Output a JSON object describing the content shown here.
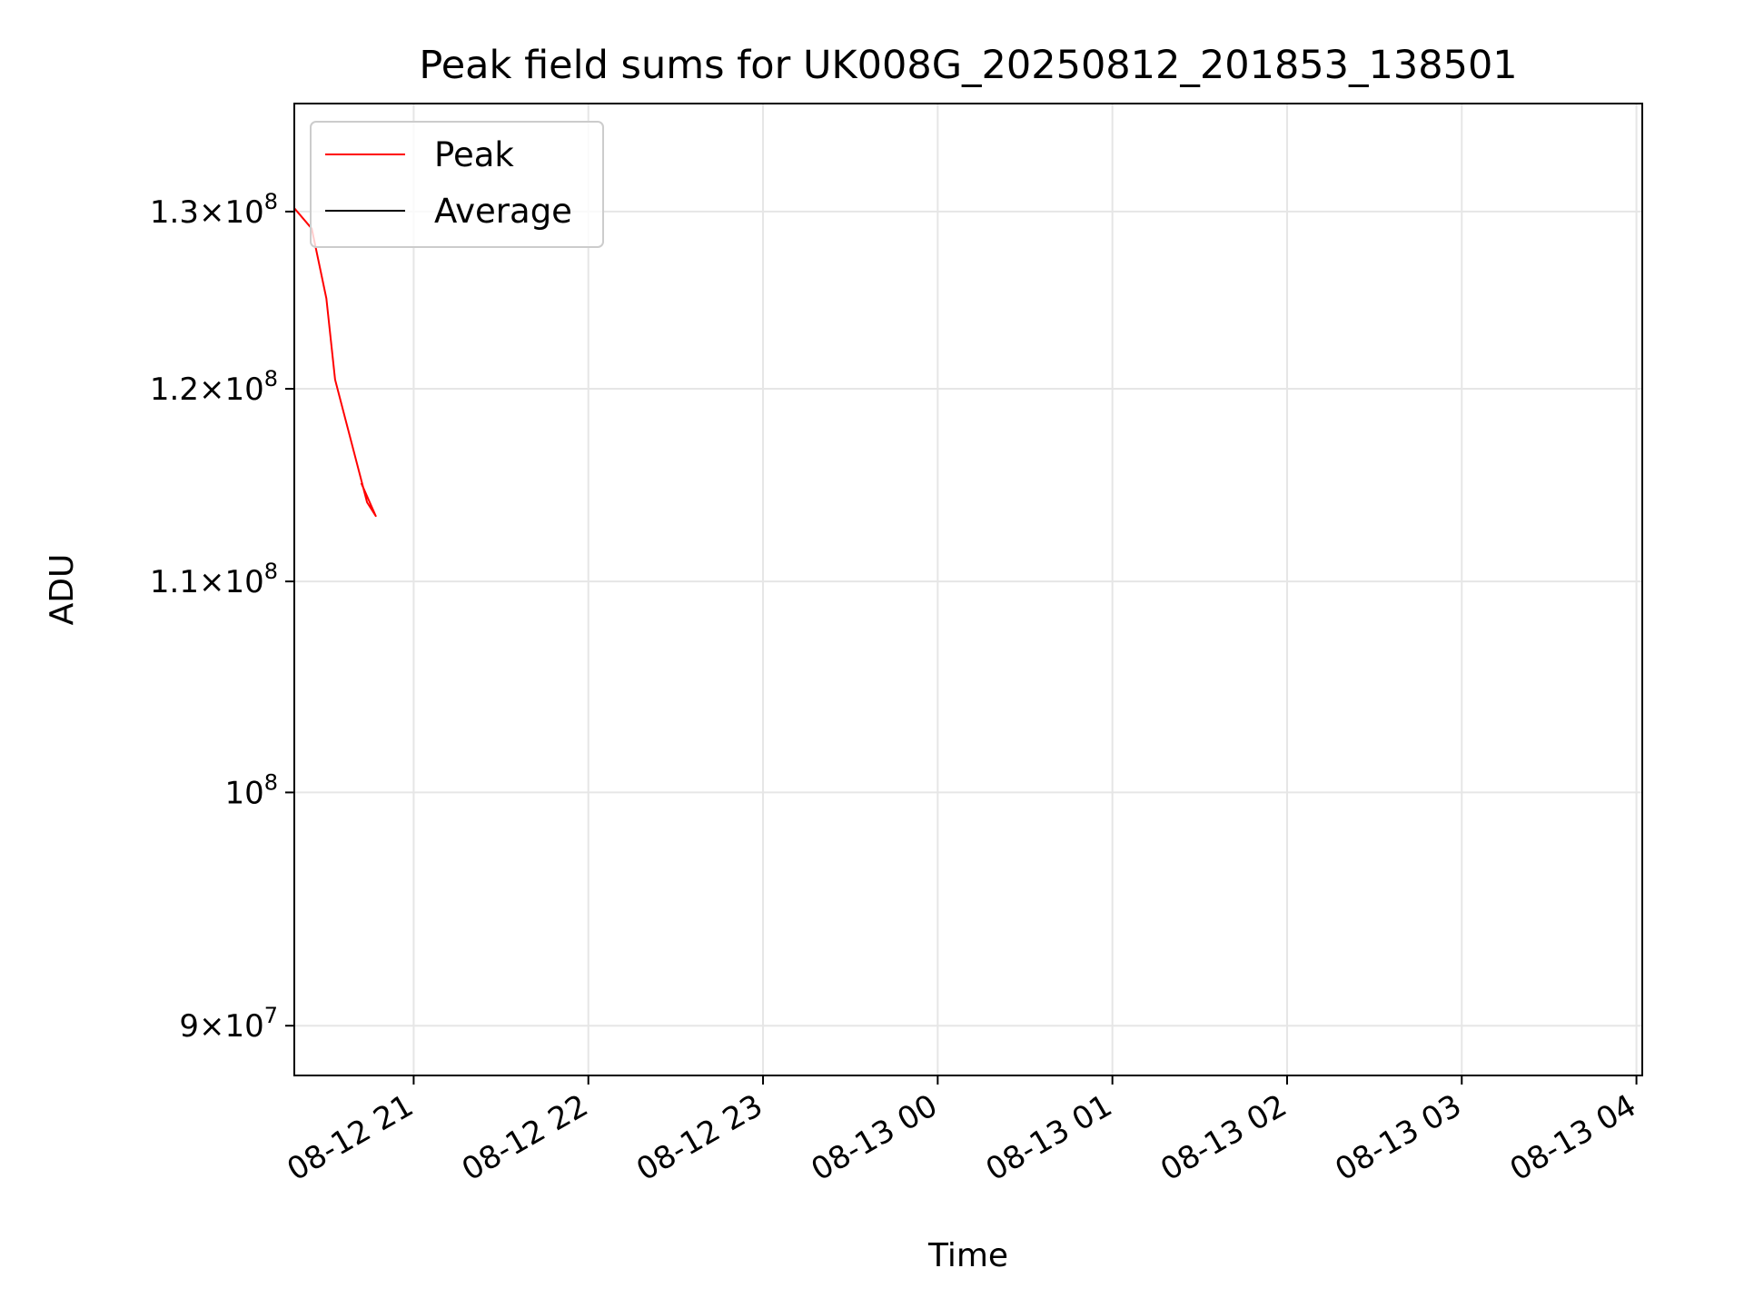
{
  "chart_data": {
    "type": "line",
    "title": "Peak field sums for UK008G_20250812_201853_138501",
    "xlabel": "Time",
    "ylabel": "ADU",
    "y_scale": "log",
    "ylim": [
      88000000,
      136500000
    ],
    "xlim": [
      "2025-08-12 20:19",
      "2025-08-13 04:02"
    ],
    "grid": true,
    "legend": {
      "placement": "top-left",
      "entries": [
        "Peak",
        "Average"
      ]
    },
    "x_ticks": [
      {
        "label": "08-12 21",
        "value": "2025-08-12 21:00"
      },
      {
        "label": "08-12 22",
        "value": "2025-08-12 22:00"
      },
      {
        "label": "08-12 23",
        "value": "2025-08-12 23:00"
      },
      {
        "label": "08-13 00",
        "value": "2025-08-13 00:00"
      },
      {
        "label": "08-13 01",
        "value": "2025-08-13 01:00"
      },
      {
        "label": "08-13 02",
        "value": "2025-08-13 02:00"
      },
      {
        "label": "08-13 03",
        "value": "2025-08-13 03:00"
      },
      {
        "label": "08-13 04",
        "value": "2025-08-13 04:00"
      }
    ],
    "y_ticks": [
      {
        "value": 90000000,
        "mantissa": "9",
        "exponent": "7"
      },
      {
        "value": 100000000,
        "mantissa": "",
        "exponent": "8"
      },
      {
        "value": 110000000,
        "mantissa": "1.1",
        "exponent": "8"
      },
      {
        "value": 120000000,
        "mantissa": "1.2",
        "exponent": "8"
      },
      {
        "value": 130000000,
        "mantissa": "1.3",
        "exponent": "8"
      }
    ],
    "series": [
      {
        "name": "Peak",
        "color": "#ff0000",
        "points": [
          [
            "2025-08-12 20:19",
            130200000
          ],
          [
            "2025-08-12 20:25",
            129000000
          ],
          [
            "2025-08-12 20:30",
            125000000
          ],
          [
            "2025-08-12 20:33",
            120500000
          ],
          [
            "2025-08-12 20:38",
            117500000
          ],
          [
            "2025-08-12 20:44",
            114000000
          ],
          [
            "2025-08-12 20:47",
            113300000
          ],
          [
            "2025-08-12 20:42",
            115000000
          ],
          [
            "2025-08-12 20:42",
            115000000
          ],
          [
            "2025-08-12 20:42",
            115000000
          ],
          [
            "2025-08-12 20:42",
            115000000
          ],
          [
            "2025-08-12 20:42",
            115000000
          ],
          [
            "2025-08-12 20:42",
            115000000
          ],
          [
            "2025-08-12 20:42",
            115000000
          ],
          [
            "2025-08-12 20:42",
            115000000
          ],
          [
            "2025-08-12 20:42",
            115000000
          ],
          [
            "2025-08-12 20:42",
            115000000
          ],
          [
            "2025-08-12 20:42",
            115000000
          ],
          [
            "2025-08-12 20:42",
            115000000
          ],
          [
            "2025-08-12 20:42",
            115000000
          ],
          [
            "2025-08-12 20:42",
            115000000
          ],
          [
            "2025-08-12 20:42",
            115000000
          ],
          [
            "2025-08-12 20:42",
            115000000
          ],
          [
            "2025-08-12 20:42",
            115000000
          ],
          [
            "2025-08-12 20:42",
            115000000
          ],
          [
            "2025-08-12 20:42",
            115000000
          ],
          [
            "2025-08-12 20:42",
            115000000
          ],
          [
            "2025-08-12 20:42",
            115000000
          ],
          [
            "2025-08-12 20:42",
            115000000
          ],
          [
            "2025-08-12 20:42",
            115000000
          ],
          [
            "2025-08-12 20:42",
            115000000
          ],
          [
            "2025-08-12 20:42",
            115000000
          ],
          [
            "2025-08-12 20:42",
            115000000
          ],
          [
            "2025-08-12 20:42",
            115000000
          ],
          [
            "2025-08-12 20:42",
            115000000
          ],
          [
            "2025-08-12 20:42",
            115000000
          ],
          [
            "2025-08-12 20:42",
            115000000
          ],
          [
            "2025-08-12 20:42",
            115000000
          ],
          [
            "2025-08-12 20:42",
            115000000
          ],
          [
            "2025-08-12 20:42",
            115000000
          ],
          [
            "2025-08-12 20:42",
            115000000
          ],
          [
            "2025-08-12 20:42",
            115000000
          ],
          [
            "2025-08-12 20:42",
            115000000
          ],
          [
            "2025-08-12 20:42",
            115000000
          ],
          [
            "2025-08-12 20:42",
            115000000
          ],
          [
            "2025-08-12 20:42",
            115000000
          ],
          [
            "2025-08-12 20:42",
            115000000
          ],
          [
            "2025-08-12 20:42",
            115000000
          ],
          [
            "2025-08-12 20:42",
            115000000
          ],
          [
            "2025-08-12 20:42",
            115000000
          ],
          [
            "2025-08-12 20:42",
            115000000
          ],
          [
            "2025-08-12 20:42",
            115000000
          ],
          [
            "2025-08-12 20:42",
            115000000
          ],
          [
            "2025-08-12 20:42",
            115000000
          ],
          [
            "2025-08-12 20:42",
            115000000
          ],
          [
            "2025-08-12 20:42",
            115000000
          ],
          [
            "2025-08-12 20:42",
            115000000
          ],
          [
            "2025-08-12 20:42",
            115000000
          ],
          [
            "2025-08-12 20:42",
            115000000
          ],
          [
            "2025-08-12 20:42",
            115000000
          ],
          [
            "2025-08-12 20:42",
            115000000
          ],
          [
            "2025-08-12 20:42",
            115000000
          ],
          [
            "2025-08-12 20:42",
            115000000
          ],
          [
            "2025-08-12 20:42",
            115000000
          ],
          [
            "2025-08-12 20:42",
            115000000
          ],
          [
            "2025-08-12 20:42",
            115000000
          ]
        ]
      }
    ]
  }
}
